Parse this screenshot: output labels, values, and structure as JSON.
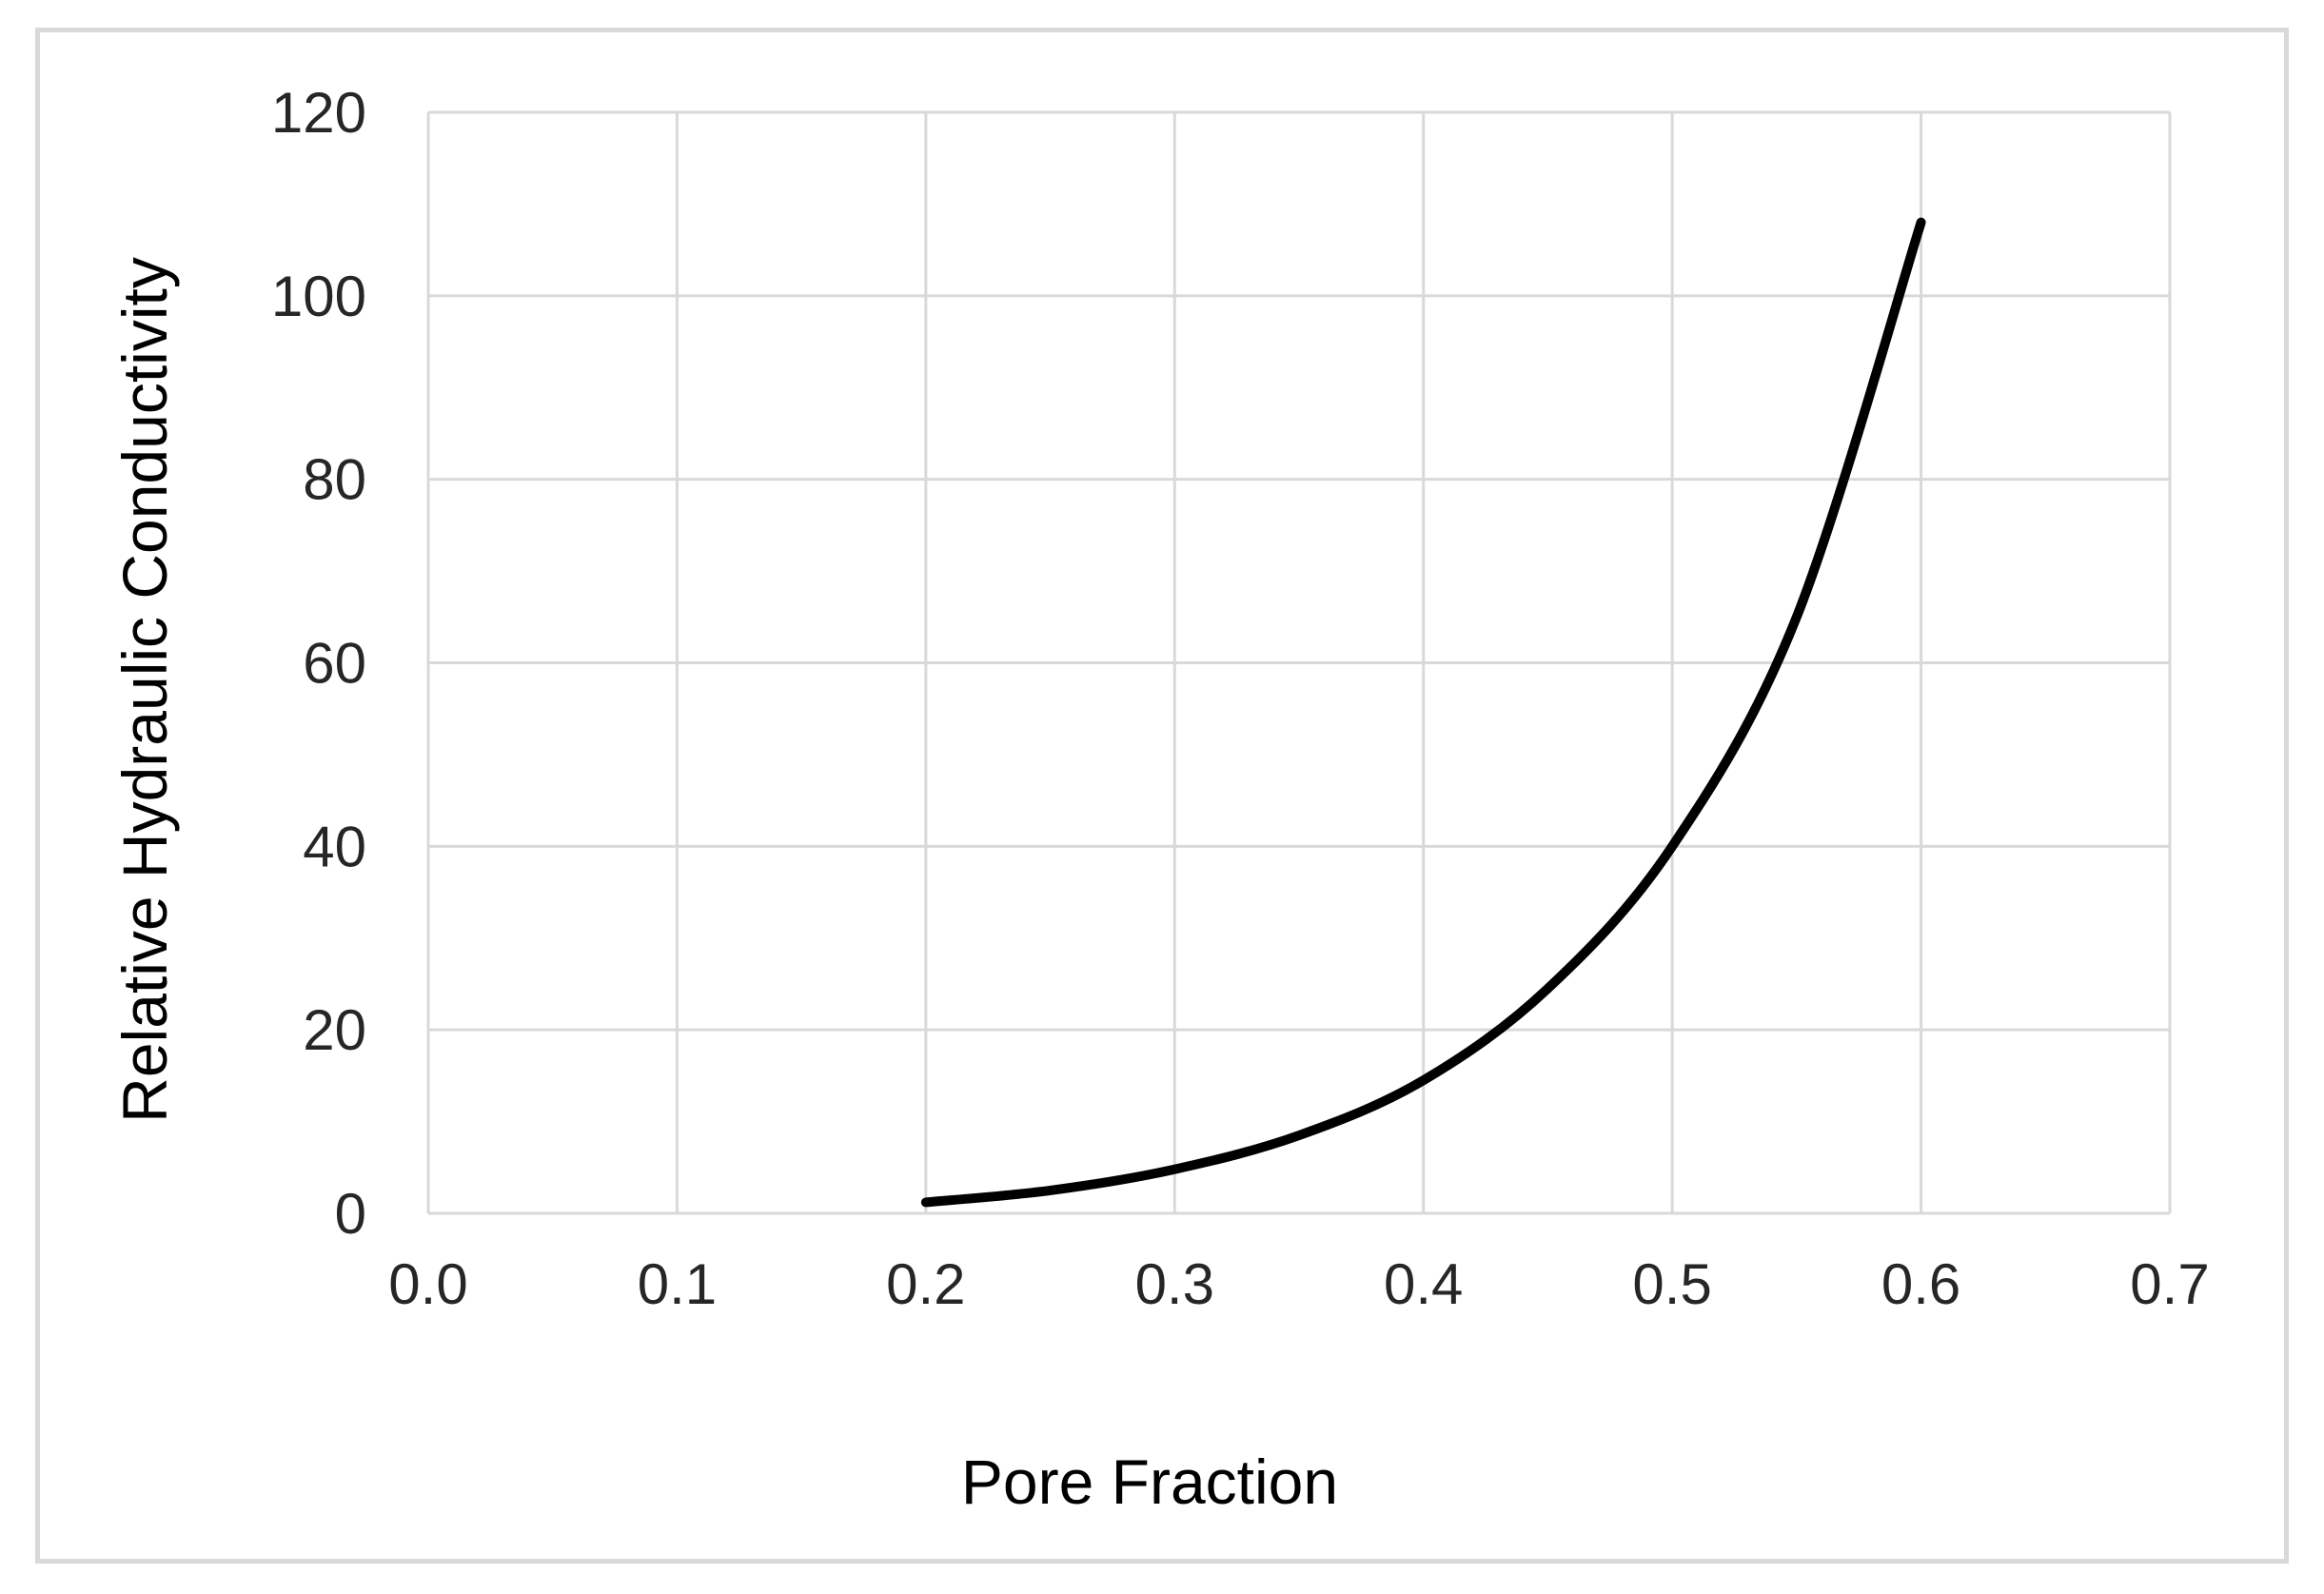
{
  "chart_data": {
    "type": "line",
    "title": "",
    "xlabel": "Pore Fraction",
    "ylabel": "Relative  Hydraulic Conductivity",
    "xlim": [
      0.0,
      0.7
    ],
    "ylim": [
      0,
      120
    ],
    "x_ticks": [
      "0.0",
      "0.1",
      "0.2",
      "0.3",
      "0.4",
      "0.5",
      "0.6",
      "0.7"
    ],
    "y_ticks": [
      "0",
      "20",
      "40",
      "60",
      "80",
      "100",
      "120"
    ],
    "grid": true,
    "legend": "none",
    "series": [
      {
        "color": "#000000",
        "x": [
          0.2,
          0.25,
          0.3,
          0.35,
          0.4,
          0.45,
          0.5,
          0.55,
          0.6
        ],
        "y": [
          1.2,
          2.5,
          4.8,
          8.5,
          14.5,
          24.5,
          40.0,
          65.0,
          108.0
        ]
      }
    ],
    "colors": {
      "line": "#000000",
      "grid": "#d9d9d9",
      "frame": "#d9d9d9",
      "ticks_text": "#262626"
    }
  }
}
